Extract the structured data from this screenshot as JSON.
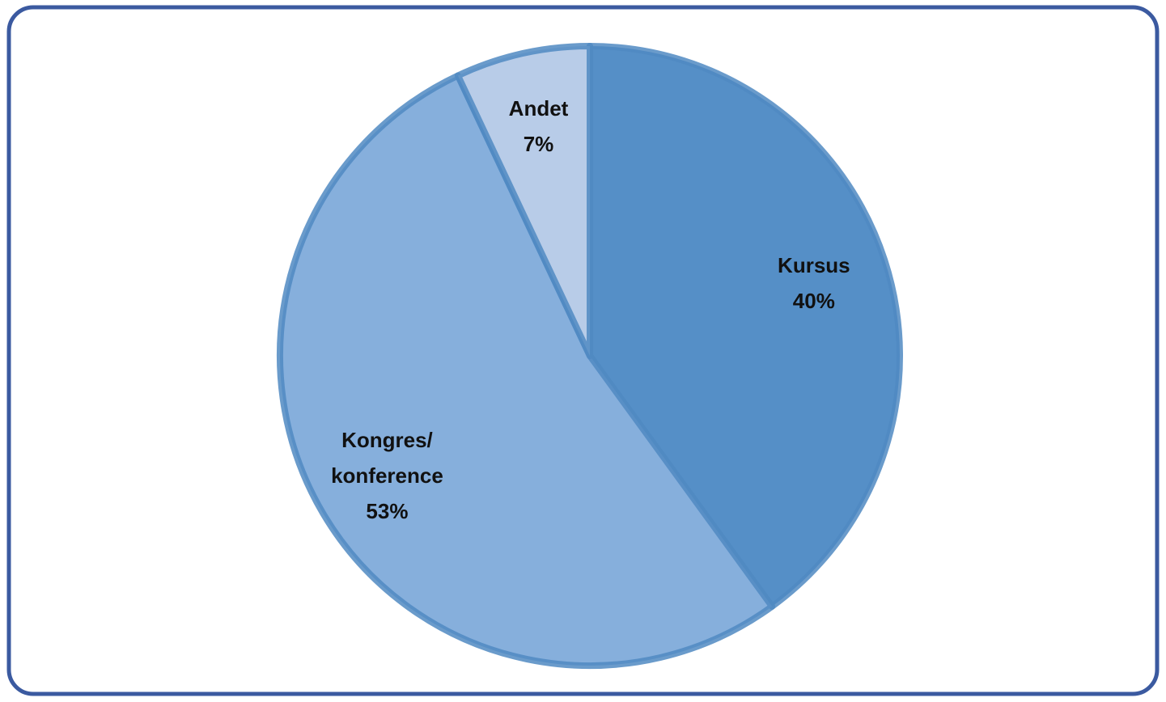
{
  "chart_data": {
    "type": "pie",
    "categories": [
      "Kursus",
      "Kongres/\nkonference",
      "Andet"
    ],
    "values": [
      40,
      53,
      7
    ],
    "value_labels": [
      "40%",
      "53%",
      "7%"
    ],
    "colors": [
      "#558fc7",
      "#86afdc",
      "#b8cce8"
    ]
  }
}
